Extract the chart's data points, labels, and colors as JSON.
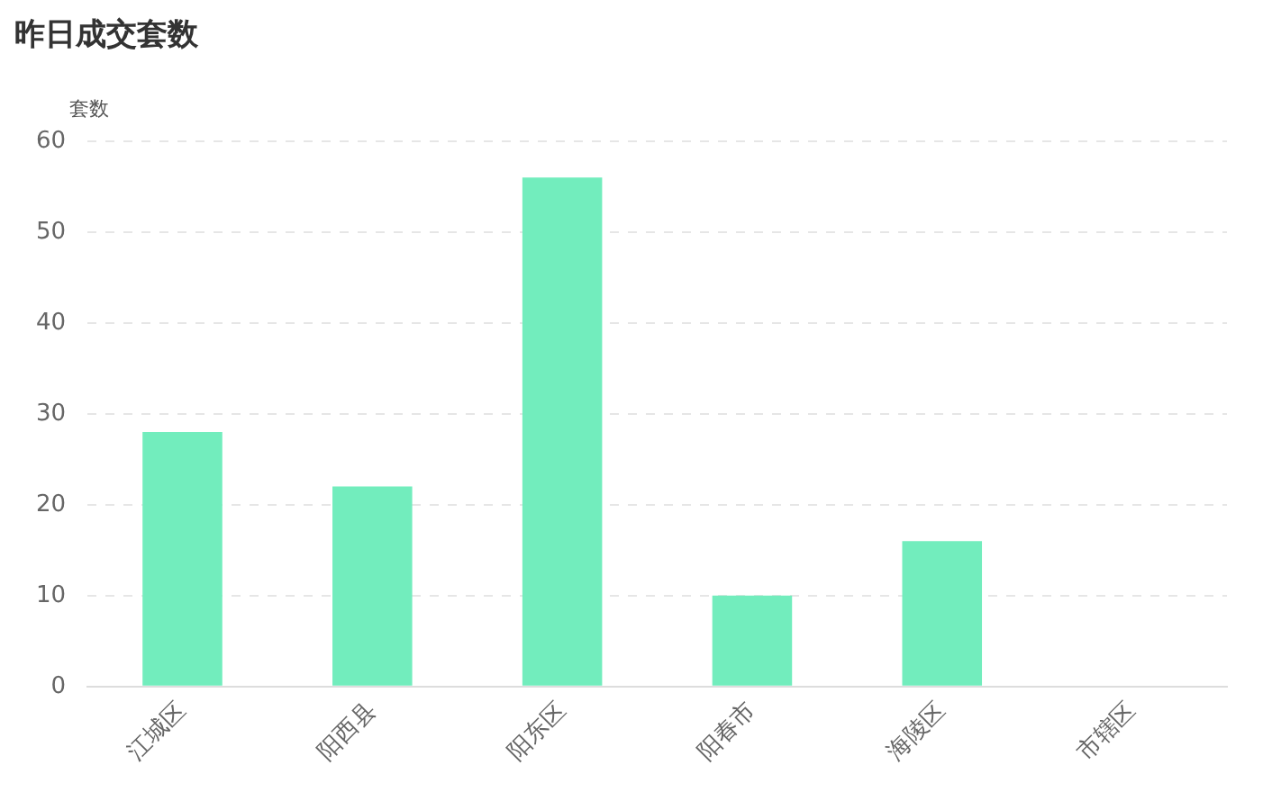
{
  "chart_data": {
    "type": "bar",
    "title": "昨日成交套数",
    "ylabel": "套数",
    "categories": [
      "江城区",
      "阳西县",
      "阳东区",
      "阳春市",
      "海陵区",
      "市辖区"
    ],
    "values": [
      28,
      22,
      56,
      10,
      16,
      0
    ],
    "color": "#72edbd",
    "ylim": [
      0,
      60
    ],
    "yticks": [
      0,
      10,
      20,
      30,
      40,
      50,
      60
    ],
    "grid": "y",
    "legend": false
  }
}
